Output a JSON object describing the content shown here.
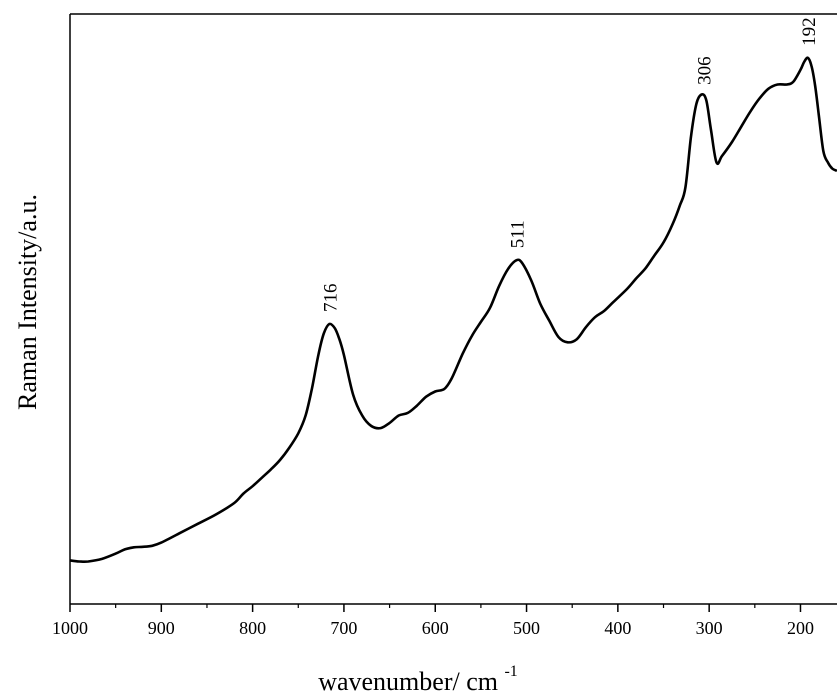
{
  "chart_data": {
    "type": "line",
    "xlabel": "wavenumber/ cm",
    "xlabel_superscript": "-1",
    "ylabel": "Raman Intensity/a.u.",
    "xlim": [
      1000,
      160
    ],
    "ylim": [
      0,
      1
    ],
    "x_reversed": true,
    "yticks_shown": false,
    "grid": false,
    "legend": "none",
    "xticks": [
      1000,
      900,
      800,
      700,
      600,
      500,
      400,
      300,
      200
    ],
    "peaks": [
      {
        "x": 716,
        "label": "716"
      },
      {
        "x": 511,
        "label": "511"
      },
      {
        "x": 306,
        "label": "306"
      },
      {
        "x": 192,
        "label": "192"
      }
    ],
    "series": [
      {
        "color": "#000000",
        "points": [
          [
            1000,
            0.047
          ],
          [
            990,
            0.045
          ],
          [
            980,
            0.045
          ],
          [
            965,
            0.05
          ],
          [
            950,
            0.06
          ],
          [
            940,
            0.068
          ],
          [
            930,
            0.072
          ],
          [
            920,
            0.073
          ],
          [
            910,
            0.075
          ],
          [
            900,
            0.081
          ],
          [
            880,
            0.099
          ],
          [
            860,
            0.117
          ],
          [
            840,
            0.135
          ],
          [
            820,
            0.157
          ],
          [
            810,
            0.175
          ],
          [
            800,
            0.189
          ],
          [
            790,
            0.205
          ],
          [
            780,
            0.221
          ],
          [
            770,
            0.239
          ],
          [
            760,
            0.262
          ],
          [
            750,
            0.29
          ],
          [
            742,
            0.324
          ],
          [
            735,
            0.376
          ],
          [
            728,
            0.44
          ],
          [
            722,
            0.481
          ],
          [
            716,
            0.499
          ],
          [
            710,
            0.491
          ],
          [
            705,
            0.47
          ],
          [
            700,
            0.44
          ],
          [
            690,
            0.364
          ],
          [
            680,
            0.324
          ],
          [
            670,
            0.304
          ],
          [
            660,
            0.3
          ],
          [
            650,
            0.31
          ],
          [
            640,
            0.324
          ],
          [
            630,
            0.329
          ],
          [
            620,
            0.343
          ],
          [
            610,
            0.36
          ],
          [
            600,
            0.37
          ],
          [
            590,
            0.375
          ],
          [
            582,
            0.395
          ],
          [
            570,
            0.442
          ],
          [
            560,
            0.476
          ],
          [
            550,
            0.503
          ],
          [
            540,
            0.53
          ],
          [
            530,
            0.572
          ],
          [
            520,
            0.605
          ],
          [
            511,
            0.621
          ],
          [
            505,
            0.616
          ],
          [
            495,
            0.583
          ],
          [
            485,
            0.538
          ],
          [
            475,
            0.505
          ],
          [
            465,
            0.474
          ],
          [
            455,
            0.464
          ],
          [
            445,
            0.47
          ],
          [
            435,
            0.493
          ],
          [
            425,
            0.512
          ],
          [
            415,
            0.524
          ],
          [
            405,
            0.541
          ],
          [
            390,
            0.566
          ],
          [
            380,
            0.586
          ],
          [
            370,
            0.605
          ],
          [
            360,
            0.63
          ],
          [
            350,
            0.655
          ],
          [
            340,
            0.69
          ],
          [
            332,
            0.726
          ],
          [
            326,
            0.76
          ],
          [
            320,
            0.856
          ],
          [
            314,
            0.92
          ],
          [
            308,
            0.938
          ],
          [
            303,
            0.926
          ],
          [
            298,
            0.87
          ],
          [
            292,
            0.808
          ],
          [
            286,
            0.82
          ],
          [
            275,
            0.847
          ],
          [
            265,
            0.876
          ],
          [
            255,
            0.905
          ],
          [
            245,
            0.93
          ],
          [
            235,
            0.949
          ],
          [
            225,
            0.957
          ],
          [
            215,
            0.957
          ],
          [
            208,
            0.962
          ],
          [
            200,
            0.985
          ],
          [
            196,
            1.0
          ],
          [
            192,
            1.008
          ],
          [
            188,
            0.993
          ],
          [
            184,
            0.955
          ],
          [
            180,
            0.9
          ],
          [
            175,
            0.83
          ],
          [
            170,
            0.808
          ],
          [
            165,
            0.796
          ],
          [
            160,
            0.792
          ]
        ]
      }
    ]
  }
}
